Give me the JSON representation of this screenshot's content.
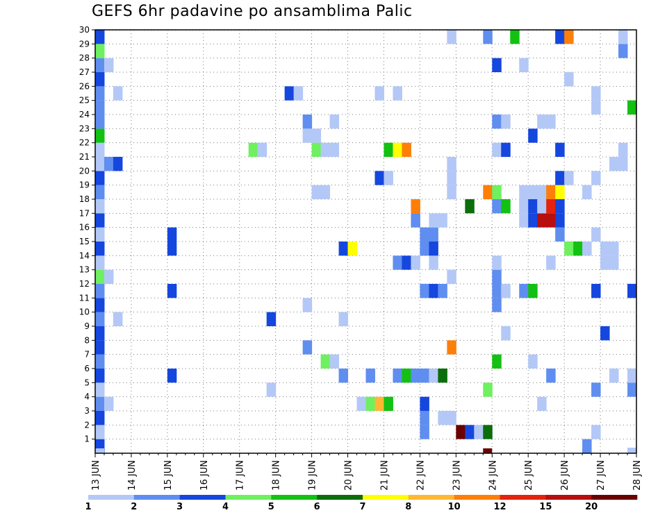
{
  "chart_data": {
    "type": "heatmap",
    "title": "GEFS 6hr padavine po ansamblima Palic",
    "y_ticks": [
      "1",
      "2",
      "3",
      "4",
      "5",
      "6",
      "7",
      "8",
      "9",
      "10",
      "11",
      "12",
      "13",
      "14",
      "15",
      "16",
      "17",
      "18",
      "19",
      "20",
      "21",
      "22",
      "23",
      "24",
      "25",
      "26",
      "27",
      "28",
      "29",
      "30"
    ],
    "x_ticks": [
      "13 JUN",
      "14 JUN",
      "15 JUN",
      "16 JUN",
      "17 JUN",
      "18 JUN",
      "19 JUN",
      "20 JUN",
      "21 JUN",
      "22 JUN",
      "23 JUN",
      "24 JUN",
      "25 JUN",
      "26 JUN",
      "27 JUN",
      "28 JUN"
    ],
    "grid": true,
    "colorbar": {
      "labels": [
        "1",
        "2",
        "3",
        "4",
        "5",
        "6",
        "7",
        "8",
        "10",
        "12",
        "15",
        "20"
      ],
      "colors": [
        "#b3c8f7",
        "#5f8ef0",
        "#1547de",
        "#6ef060",
        "#13c113",
        "#0b6d0b",
        "#ffff00",
        "#ffb733",
        "#fd7f09",
        "#e3230d",
        "#b70e0e",
        "#6b0000"
      ]
    },
    "cells_note": "each cell: [day_offset_from_13_JUN, member_row, color_class 1-12]",
    "cells": [
      [
        0.0,
        1,
        3
      ],
      [
        0.0,
        2,
        1
      ],
      [
        0.0,
        3,
        3
      ],
      [
        0.0,
        4,
        2
      ],
      [
        0.0,
        5,
        1
      ],
      [
        0.0,
        6,
        3
      ],
      [
        0.0,
        7,
        2
      ],
      [
        0.0,
        8,
        3
      ],
      [
        0.0,
        9,
        3
      ],
      [
        0.0,
        10,
        2
      ],
      [
        0.0,
        11,
        3
      ],
      [
        0.0,
        12,
        2
      ],
      [
        0.0,
        13,
        4
      ],
      [
        0.0,
        14,
        1
      ],
      [
        0.0,
        15,
        3
      ],
      [
        0.0,
        16,
        1
      ],
      [
        0.0,
        17,
        3
      ],
      [
        0.0,
        18,
        1
      ],
      [
        0.0,
        19,
        2
      ],
      [
        0.0,
        20,
        3
      ],
      [
        0.0,
        21,
        1
      ],
      [
        0.0,
        22,
        1
      ],
      [
        0.0,
        23,
        5
      ],
      [
        0.0,
        24,
        2
      ],
      [
        0.0,
        25,
        2
      ],
      [
        0.0,
        26,
        2
      ],
      [
        0.0,
        27,
        3
      ],
      [
        0.0,
        28,
        2
      ],
      [
        0.0,
        29,
        4
      ],
      [
        0.0,
        30,
        3
      ],
      [
        0.25,
        4,
        1
      ],
      [
        0.25,
        13,
        1
      ],
      [
        0.25,
        21,
        2
      ],
      [
        0.25,
        28,
        1
      ],
      [
        0.5,
        10,
        1
      ],
      [
        0.5,
        21,
        3
      ],
      [
        0.5,
        26,
        1
      ],
      [
        2.0,
        6,
        3
      ],
      [
        2.0,
        12,
        3
      ],
      [
        2.0,
        15,
        3
      ],
      [
        2.0,
        16,
        3
      ],
      [
        4.25,
        22,
        4
      ],
      [
        4.5,
        22,
        1
      ],
      [
        4.75,
        5,
        1
      ],
      [
        4.75,
        10,
        3
      ],
      [
        5.25,
        26,
        3
      ],
      [
        5.5,
        26,
        1
      ],
      [
        5.75,
        8,
        2
      ],
      [
        5.75,
        11,
        1
      ],
      [
        5.75,
        23,
        1
      ],
      [
        5.75,
        24,
        2
      ],
      [
        6.0,
        19,
        1
      ],
      [
        6.0,
        22,
        4
      ],
      [
        6.0,
        23,
        1
      ],
      [
        6.25,
        19,
        1
      ],
      [
        6.25,
        22,
        1
      ],
      [
        6.25,
        7,
        4
      ],
      [
        6.5,
        7,
        1
      ],
      [
        6.5,
        22,
        1
      ],
      [
        6.5,
        24,
        1
      ],
      [
        6.75,
        6,
        2
      ],
      [
        6.75,
        10,
        1
      ],
      [
        6.75,
        15,
        3
      ],
      [
        7.0,
        15,
        7
      ],
      [
        7.25,
        4,
        1
      ],
      [
        7.5,
        4,
        4
      ],
      [
        7.75,
        4,
        8
      ],
      [
        8.0,
        4,
        5
      ],
      [
        7.5,
        6,
        2
      ],
      [
        7.75,
        20,
        3
      ],
      [
        7.75,
        26,
        1
      ],
      [
        8.0,
        20,
        1
      ],
      [
        8.0,
        22,
        5
      ],
      [
        8.25,
        22,
        7
      ],
      [
        8.5,
        22,
        9
      ],
      [
        8.25,
        26,
        1
      ],
      [
        8.25,
        6,
        2
      ],
      [
        8.25,
        14,
        2
      ],
      [
        8.5,
        6,
        5
      ],
      [
        8.5,
        14,
        3
      ],
      [
        8.75,
        6,
        2
      ],
      [
        8.75,
        14,
        1
      ],
      [
        8.75,
        17,
        2
      ],
      [
        8.75,
        18,
        9
      ],
      [
        9.0,
        2,
        2
      ],
      [
        9.0,
        3,
        2
      ],
      [
        9.0,
        4,
        3
      ],
      [
        9.0,
        6,
        2
      ],
      [
        9.0,
        12,
        2
      ],
      [
        9.0,
        15,
        2
      ],
      [
        9.0,
        16,
        2
      ],
      [
        9.25,
        6,
        1
      ],
      [
        9.25,
        12,
        3
      ],
      [
        9.25,
        14,
        1
      ],
      [
        9.25,
        15,
        3
      ],
      [
        9.25,
        16,
        2
      ],
      [
        9.25,
        17,
        1
      ],
      [
        9.5,
        3,
        1
      ],
      [
        9.5,
        6,
        6
      ],
      [
        9.5,
        12,
        2
      ],
      [
        9.5,
        17,
        1
      ],
      [
        9.75,
        3,
        1
      ],
      [
        9.75,
        8,
        9
      ],
      [
        9.75,
        13,
        1
      ],
      [
        9.75,
        19,
        1
      ],
      [
        9.75,
        20,
        1
      ],
      [
        9.75,
        21,
        1
      ],
      [
        9.75,
        30,
        1
      ],
      [
        10.0,
        2,
        12
      ],
      [
        10.25,
        18,
        6
      ],
      [
        10.25,
        2,
        3
      ],
      [
        10.5,
        2,
        1
      ],
      [
        10.75,
        2,
        6
      ],
      [
        10.75,
        5,
        4
      ],
      [
        10.75,
        19,
        9
      ],
      [
        10.75,
        30,
        2
      ],
      [
        11.0,
        7,
        5
      ],
      [
        11.0,
        11,
        2
      ],
      [
        11.0,
        12,
        2
      ],
      [
        11.0,
        13,
        2
      ],
      [
        11.0,
        14,
        1
      ],
      [
        11.0,
        18,
        2
      ],
      [
        11.0,
        19,
        4
      ],
      [
        11.0,
        22,
        1
      ],
      [
        11.0,
        24,
        2
      ],
      [
        11.0,
        28,
        3
      ],
      [
        11.25,
        9,
        1
      ],
      [
        11.25,
        12,
        1
      ],
      [
        11.25,
        18,
        5
      ],
      [
        11.25,
        22,
        3
      ],
      [
        11.25,
        24,
        1
      ],
      [
        11.5,
        30,
        5
      ],
      [
        11.75,
        19,
        1
      ],
      [
        11.75,
        28,
        1
      ],
      [
        11.75,
        12,
        2
      ],
      [
        11.75,
        17,
        1
      ],
      [
        11.75,
        18,
        1
      ],
      [
        12.0,
        12,
        5
      ],
      [
        12.0,
        7,
        1
      ],
      [
        12.0,
        17,
        3
      ],
      [
        12.0,
        18,
        3
      ],
      [
        12.0,
        23,
        3
      ],
      [
        12.0,
        19,
        1
      ],
      [
        12.25,
        4,
        1
      ],
      [
        12.25,
        17,
        11
      ],
      [
        12.25,
        18,
        1
      ],
      [
        12.25,
        19,
        1
      ],
      [
        12.25,
        24,
        1
      ],
      [
        12.5,
        14,
        1
      ],
      [
        12.5,
        17,
        11
      ],
      [
        12.5,
        18,
        10
      ],
      [
        12.5,
        19,
        9
      ],
      [
        12.5,
        24,
        1
      ],
      [
        12.5,
        6,
        2
      ],
      [
        12.75,
        16,
        2
      ],
      [
        12.75,
        17,
        3
      ],
      [
        12.75,
        18,
        3
      ],
      [
        12.75,
        19,
        7
      ],
      [
        12.75,
        20,
        3
      ],
      [
        12.75,
        22,
        3
      ],
      [
        12.75,
        30,
        3
      ],
      [
        13.0,
        20,
        1
      ],
      [
        13.0,
        27,
        1
      ],
      [
        13.0,
        15,
        4
      ],
      [
        13.25,
        15,
        5
      ],
      [
        13.5,
        15,
        1
      ],
      [
        13.5,
        19,
        1
      ],
      [
        13.0,
        30,
        9
      ],
      [
        13.5,
        1,
        2
      ],
      [
        13.75,
        2,
        1
      ],
      [
        13.75,
        5,
        2
      ],
      [
        13.75,
        12,
        3
      ],
      [
        13.75,
        20,
        1
      ],
      [
        13.75,
        16,
        1
      ],
      [
        13.75,
        25,
        1
      ],
      [
        13.75,
        26,
        1
      ],
      [
        14.0,
        9,
        3
      ],
      [
        14.0,
        14,
        1
      ],
      [
        14.0,
        15,
        1
      ],
      [
        14.25,
        14,
        1
      ],
      [
        14.25,
        15,
        1
      ],
      [
        14.25,
        6,
        1
      ],
      [
        14.25,
        21,
        1
      ],
      [
        14.5,
        21,
        1
      ],
      [
        14.5,
        22,
        1
      ],
      [
        14.5,
        29,
        2
      ],
      [
        14.5,
        30,
        1
      ],
      [
        14.75,
        5,
        2
      ],
      [
        14.75,
        6,
        1
      ],
      [
        14.75,
        12,
        3
      ],
      [
        14.75,
        25,
        5
      ],
      [
        14.75,
        0,
        1
      ]
    ],
    "bottom_marks": [
      [
        0.0,
        1
      ],
      [
        10.75,
        12
      ],
      [
        13.5,
        2
      ],
      [
        14.75,
        1
      ]
    ]
  }
}
